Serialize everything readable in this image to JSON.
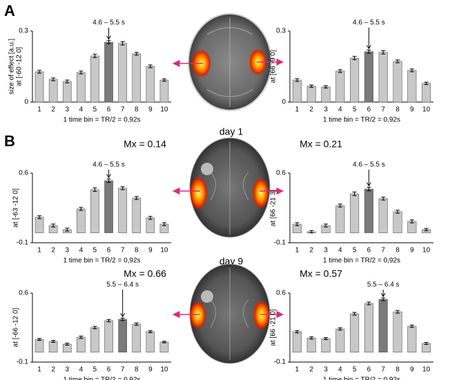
{
  "labels": {
    "panel_a": "A",
    "panel_b": "B",
    "day_1": "day 1",
    "day_9": "day 9"
  },
  "chart_data": [
    {
      "type": "bar",
      "ylabel": [
        "size of effect [a.u.]",
        "at [-60 -12 0]"
      ],
      "xlabel": "1 time bin = TR/2 = 0,92s",
      "annotation": "4.6 – 5.5 s",
      "categories": [
        "1",
        "2",
        "3",
        "4",
        "5",
        "6",
        "7",
        "8",
        "9",
        "10"
      ],
      "values": [
        0.128,
        0.096,
        0.087,
        0.125,
        0.195,
        0.253,
        0.248,
        0.204,
        0.151,
        0.093
      ],
      "errors": [
        0.006,
        0.006,
        0.006,
        0.006,
        0.007,
        0.007,
        0.007,
        0.006,
        0.006,
        0.005
      ],
      "colors": [
        "#c8c8c8",
        "#c8c8c8",
        "#c8c8c8",
        "#c8c8c8",
        "#c8c8c8",
        "#7a7a7a",
        "#c8c8c8",
        "#c8c8c8",
        "#c8c8c8",
        "#c8c8c8"
      ],
      "ylim": [
        0,
        0.3
      ],
      "yticks": [
        0,
        0.3
      ]
    },
    {
      "type": "bar",
      "ylabel": [
        "at [66 -9 0]"
      ],
      "xlabel": "1 time bin = TR/2 = 0,92s",
      "annotation": "4.6 – 5.5 s",
      "categories": [
        "1",
        "2",
        "3",
        "4",
        "5",
        "6",
        "7",
        "8",
        "9",
        "10"
      ],
      "values": [
        0.093,
        0.067,
        0.064,
        0.131,
        0.186,
        0.213,
        0.21,
        0.172,
        0.134,
        0.079
      ],
      "errors": [
        0.006,
        0.005,
        0.005,
        0.006,
        0.007,
        0.007,
        0.007,
        0.006,
        0.006,
        0.005
      ],
      "colors": [
        "#c8c8c8",
        "#c8c8c8",
        "#c8c8c8",
        "#c8c8c8",
        "#c8c8c8",
        "#7a7a7a",
        "#c8c8c8",
        "#c8c8c8",
        "#c8c8c8",
        "#c8c8c8"
      ],
      "ylim": [
        0,
        0.3
      ],
      "yticks": [
        0,
        0.3
      ]
    },
    {
      "type": "bar",
      "title": "Mx = 0.14",
      "ylabel": [
        "at [-63 -12 0]"
      ],
      "xlabel": "1 time bin = TR/2 = 0,92s",
      "annotation": "4.6 – 5.5 s",
      "categories": [
        "1",
        "2",
        "3",
        "4",
        "5",
        "6",
        "7",
        "8",
        "9",
        "10"
      ],
      "values": [
        0.157,
        0.073,
        0.032,
        0.24,
        0.434,
        0.524,
        0.448,
        0.35,
        0.15,
        0.087
      ],
      "errors": [
        0.015,
        0.015,
        0.015,
        0.015,
        0.018,
        0.018,
        0.015,
        0.015,
        0.015,
        0.015
      ],
      "colors": [
        "#c8c8c8",
        "#c8c8c8",
        "#c8c8c8",
        "#c8c8c8",
        "#c8c8c8",
        "#7a7a7a",
        "#c8c8c8",
        "#c8c8c8",
        "#c8c8c8",
        "#c8c8c8"
      ],
      "ylim": [
        -0.1,
        0.6
      ],
      "yticks": [
        -0.1,
        0.6
      ]
    },
    {
      "type": "bar",
      "title": "Mx = 0.21",
      "ylabel": [
        "at [66 -21 3]"
      ],
      "xlabel": "1 time bin = TR/2 = 0,92s",
      "annotation": "4.6 – 5.5 s",
      "categories": [
        "1",
        "2",
        "3",
        "4",
        "5",
        "6",
        "7",
        "8",
        "9",
        "10"
      ],
      "values": [
        0.087,
        0.011,
        0.073,
        0.274,
        0.392,
        0.44,
        0.344,
        0.212,
        0.115,
        0.032
      ],
      "errors": [
        0.015,
        0.012,
        0.015,
        0.015,
        0.018,
        0.018,
        0.015,
        0.015,
        0.015,
        0.012
      ],
      "colors": [
        "#c8c8c8",
        "#c8c8c8",
        "#c8c8c8",
        "#c8c8c8",
        "#c8c8c8",
        "#7a7a7a",
        "#c8c8c8",
        "#c8c8c8",
        "#c8c8c8",
        "#c8c8c8"
      ],
      "ylim": [
        -0.1,
        0.6
      ],
      "yticks": [
        -0.1,
        0.6
      ]
    },
    {
      "type": "bar",
      "title": "Mx = 0.66",
      "ylabel": [
        "at [-66 -12 0]"
      ],
      "xlabel": "1 time bin = TR/2 = 0,92s",
      "annotation": "5.5 – 6.4 s",
      "categories": [
        "1",
        "2",
        "3",
        "4",
        "5",
        "6",
        "7",
        "8",
        "9",
        "10"
      ],
      "values": [
        0.13,
        0.11,
        0.082,
        0.152,
        0.25,
        0.32,
        0.334,
        0.285,
        0.208,
        0.103
      ],
      "errors": [
        0.01,
        0.01,
        0.01,
        0.012,
        0.012,
        0.012,
        0.012,
        0.012,
        0.01,
        0.008
      ],
      "colors": [
        "#c8c8c8",
        "#c8c8c8",
        "#c8c8c8",
        "#c8c8c8",
        "#c8c8c8",
        "#c8c8c8",
        "#7a7a7a",
        "#c8c8c8",
        "#c8c8c8",
        "#c8c8c8"
      ],
      "ylim": [
        -0.1,
        0.6
      ],
      "yticks": [
        -0.1,
        0.6
      ]
    },
    {
      "type": "bar",
      "title": "Mx = 0.57",
      "ylabel": [
        "at [66 -21 0]"
      ],
      "xlabel": "1 time bin = TR/2 = 0,92s",
      "annotation": "5.5 – 6.4 s",
      "categories": [
        "1",
        "2",
        "3",
        "4",
        "5",
        "6",
        "7",
        "8",
        "9",
        "10"
      ],
      "values": [
        0.208,
        0.145,
        0.138,
        0.236,
        0.39,
        0.495,
        0.537,
        0.41,
        0.264,
        0.089
      ],
      "errors": [
        0.012,
        0.012,
        0.01,
        0.012,
        0.014,
        0.014,
        0.014,
        0.014,
        0.012,
        0.01
      ],
      "colors": [
        "#c8c8c8",
        "#c8c8c8",
        "#c8c8c8",
        "#c8c8c8",
        "#c8c8c8",
        "#c8c8c8",
        "#7a7a7a",
        "#c8c8c8",
        "#c8c8c8",
        "#c8c8c8"
      ],
      "ylim": [
        -0.1,
        0.6
      ],
      "yticks": [
        -0.1,
        0.6
      ]
    }
  ]
}
